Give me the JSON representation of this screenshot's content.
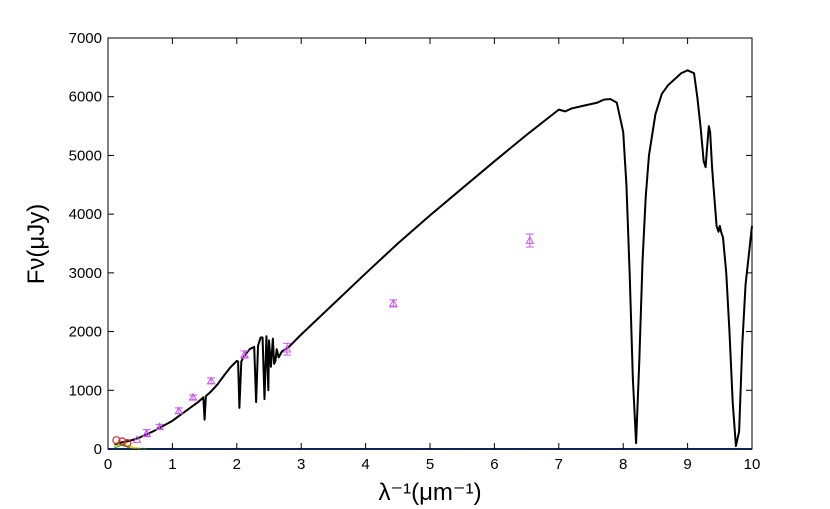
{
  "chart_data": {
    "type": "line",
    "title": "",
    "xlabel": "λ⁻¹(μm⁻¹)",
    "ylabel": "Fν(μJy)",
    "xlim": [
      0,
      10
    ],
    "ylim": [
      0,
      7000
    ],
    "xticks": [
      0,
      1,
      2,
      3,
      4,
      5,
      6,
      7,
      8,
      9,
      10
    ],
    "yticks": [
      0,
      1000,
      2000,
      3000,
      4000,
      5000,
      6000,
      7000
    ],
    "grid": false,
    "legend": "none",
    "series": [
      {
        "style": "line",
        "color": "#000000",
        "x": [
          0.1,
          0.2,
          0.3,
          0.4,
          0.5,
          0.6,
          0.7,
          0.8,
          0.9,
          1.0,
          1.1,
          1.2,
          1.3,
          1.4,
          1.48,
          1.5,
          1.52,
          1.55,
          1.6,
          1.7,
          1.8,
          1.9,
          2.0,
          2.02,
          2.04,
          2.07,
          2.1,
          2.15,
          2.2,
          2.27,
          2.3,
          2.33,
          2.37,
          2.4,
          2.43,
          2.46,
          2.49,
          2.5,
          2.53,
          2.56,
          2.58,
          2.6,
          2.62,
          2.65,
          2.7,
          2.8,
          3.0,
          3.5,
          4.0,
          4.5,
          5.0,
          5.5,
          6.0,
          6.5,
          7.0,
          7.1,
          7.2,
          7.4,
          7.6,
          7.7,
          7.8,
          7.9,
          8.0,
          8.05,
          8.1,
          8.15,
          8.2,
          8.25,
          8.3,
          8.35,
          8.4,
          8.5,
          8.6,
          8.7,
          8.8,
          8.9,
          9.0,
          9.1,
          9.15,
          9.2,
          9.25,
          9.28,
          9.3,
          9.33,
          9.35,
          9.38,
          9.4,
          9.45,
          9.48,
          9.5,
          9.52,
          9.55,
          9.6,
          9.65,
          9.7,
          9.75,
          9.8,
          9.85,
          9.9,
          10.0
        ],
        "y": [
          80,
          110,
          130,
          160,
          200,
          250,
          300,
          360,
          420,
          480,
          560,
          640,
          720,
          800,
          880,
          500,
          900,
          930,
          980,
          1100,
          1250,
          1390,
          1500,
          1490,
          700,
          1490,
          1560,
          1630,
          1700,
          1740,
          800,
          1760,
          1900,
          1900,
          850,
          1920,
          1000,
          1850,
          1400,
          1880,
          1450,
          1500,
          1700,
          1560,
          1660,
          1730,
          1950,
          2470,
          2990,
          3500,
          3980,
          4440,
          4900,
          5350,
          5780,
          5750,
          5800,
          5850,
          5900,
          5950,
          5960,
          5900,
          5400,
          4500,
          3000,
          1200,
          100,
          1500,
          3200,
          4300,
          5000,
          5700,
          6050,
          6200,
          6300,
          6400,
          6450,
          6400,
          6000,
          5500,
          4900,
          4800,
          5100,
          5500,
          5400,
          4800,
          4500,
          3800,
          3700,
          3800,
          3700,
          3600,
          3000,
          2000,
          800,
          50,
          300,
          1800,
          2800,
          3800
        ]
      }
    ],
    "observations": {
      "marker": "triangle",
      "color": "#cc55ee",
      "points": [
        {
          "x": 0.45,
          "y": 160,
          "err": 0
        },
        {
          "x": 0.6,
          "y": 270,
          "err": 60
        },
        {
          "x": 0.8,
          "y": 380,
          "err": 40
        },
        {
          "x": 1.1,
          "y": 650,
          "err": 50
        },
        {
          "x": 1.32,
          "y": 880,
          "err": 40
        },
        {
          "x": 1.6,
          "y": 1160,
          "err": 50
        },
        {
          "x": 2.12,
          "y": 1610,
          "err": 60
        },
        {
          "x": 2.78,
          "y": 1700,
          "err": 100
        },
        {
          "x": 4.43,
          "y": 2480,
          "err": 60
        },
        {
          "x": 6.55,
          "y": 3550,
          "err": 110
        }
      ]
    },
    "components": [
      {
        "color": "#2244aa",
        "x": [
          0,
          10
        ],
        "y": [
          0,
          0
        ]
      },
      {
        "color": "#22aa55",
        "x": [
          0.1,
          0.15,
          0.2,
          0.25,
          0.3,
          0.35,
          0.4,
          0.5,
          0.6
        ],
        "y": [
          20,
          50,
          70,
          60,
          40,
          25,
          15,
          5,
          0
        ]
      },
      {
        "color": "#dddd22",
        "x": [
          0.1,
          0.15,
          0.2,
          0.25,
          0.3,
          0.35,
          0.4,
          0.5
        ],
        "y": [
          40,
          70,
          90,
          80,
          60,
          40,
          20,
          5
        ]
      }
    ],
    "low_wavelength_markers": [
      {
        "x": 0.13,
        "y": 150,
        "color": "#cc3333"
      },
      {
        "x": 0.22,
        "y": 130,
        "color": "#cc3333"
      },
      {
        "x": 0.3,
        "y": 100,
        "color": "#cc3333"
      }
    ]
  }
}
